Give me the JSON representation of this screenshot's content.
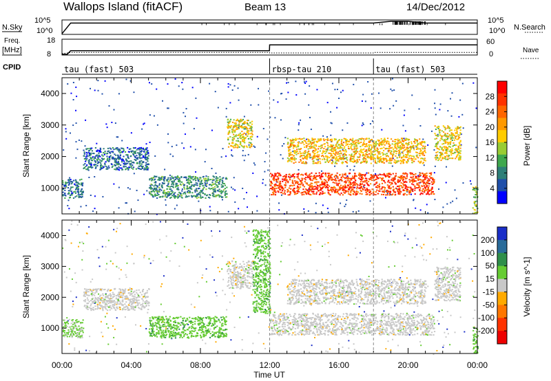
{
  "header": {
    "station": "Wallops Island (fitACF)",
    "beam": "Beam 13",
    "date": "14/Dec/2012"
  },
  "left_labels": {
    "nsky": "N.Sky",
    "nsky_ticks": [
      "10^5",
      "10^0"
    ],
    "freq": "Freq.",
    "freq_unit": "[MHz]",
    "freq_ticks": [
      "18",
      "8"
    ],
    "cpid": "CPID"
  },
  "right_labels": {
    "nsky_ticks": [
      "10^5",
      "10^0"
    ],
    "nsearch": "N.Search",
    "nave_ticks": [
      "60",
      "0"
    ],
    "nave": "Nave"
  },
  "cpid_segments": [
    {
      "label": "tau (fast) 503",
      "start_hour": 0,
      "end_hour": 12
    },
    {
      "label": "rbsp-tau 210",
      "start_hour": 12,
      "end_hour": 18
    },
    {
      "label": "tau (fast) 503",
      "start_hour": 18,
      "end_hour": 24
    }
  ],
  "x_axis": {
    "title": "Time UT",
    "tick_labels": [
      "00:00",
      "04:00",
      "08:00",
      "12:00",
      "16:00",
      "20:00",
      "00:00"
    ],
    "tick_hours": [
      0,
      4,
      8,
      12,
      16,
      20,
      24
    ]
  },
  "power_panel": {
    "ylabel": "Slant Range [km]",
    "ytick_labels": [
      "1000",
      "2000",
      "3000",
      "4000"
    ],
    "colorbar_label": "Power [dB]",
    "colorbar_ticks": [
      "4",
      "8",
      "12",
      "16",
      "20",
      "24",
      "28"
    ],
    "colors": [
      "#0000ff",
      "#1f4faa",
      "#2e7f78",
      "#3fa84e",
      "#99cc33",
      "#ffcc00",
      "#ff9900",
      "#ff6600",
      "#ff3300",
      "#ff0000"
    ]
  },
  "velocity_panel": {
    "ylabel": "Slant Range [km]",
    "ytick_labels": [
      "1000",
      "2000",
      "3000",
      "4000"
    ],
    "colorbar_label": "Velocity [m s^-1]",
    "colorbar_ticks": [
      "200",
      "100",
      "50",
      "15",
      "-15",
      "-50",
      "-100",
      "-200"
    ],
    "colors": [
      "#1a2ec8",
      "#2a6b9a",
      "#2f8f4a",
      "#66cc33",
      "#c8c8c8",
      "#ffaa00",
      "#ff7700",
      "#ff3300",
      "#ee0000"
    ]
  },
  "chart_data": [
    {
      "type": "line",
      "title": "N.Sky / N.Search",
      "x_unit": "hours UT",
      "ylim": [
        0,
        100000
      ],
      "y_scale": "log",
      "series": [
        {
          "name": "N.Sky",
          "x": [
            0,
            0.5,
            1,
            2,
            4,
            6,
            8,
            10,
            12,
            14,
            16,
            18,
            19,
            20,
            21,
            22,
            23,
            24
          ],
          "values": [
            1,
            20000,
            20000,
            20000,
            20000,
            20000,
            20000,
            20000,
            20000,
            20000,
            20000,
            20000,
            100000,
            100000,
            20000,
            20000,
            20000,
            20000
          ]
        }
      ]
    },
    {
      "type": "line",
      "title": "Freq. / Nave",
      "x_unit": "hours UT",
      "ylim": [
        8,
        18
      ],
      "series": [
        {
          "name": "Freq.",
          "x": [
            0,
            0.3,
            0.5,
            11.99,
            12.0,
            24
          ],
          "values": [
            8,
            8,
            10.5,
            10.5,
            14.5,
            14.5
          ]
        },
        {
          "name": "Nave",
          "x": [
            0,
            0.5,
            11.99,
            12,
            17.99,
            18,
            24
          ],
          "values": [
            0,
            5,
            5,
            3,
            3,
            5,
            5
          ]
        }
      ]
    },
    {
      "type": "heatmap",
      "title": "Power [dB]",
      "x_unit": "hours UT",
      "xlim": [
        0,
        24
      ],
      "ylim": [
        180,
        4500
      ],
      "ylabel": "Slant Range [km]",
      "clim": [
        0,
        30
      ],
      "regions": [
        {
          "t0": 0.0,
          "t1": 1.2,
          "r0": 700,
          "r1": 1300,
          "level": 6
        },
        {
          "t0": 1.2,
          "t1": 5.0,
          "r0": 1600,
          "r1": 2300,
          "level": 5
        },
        {
          "t0": 5.0,
          "t1": 9.5,
          "r0": 700,
          "r1": 1400,
          "level": 8
        },
        {
          "t0": 9.5,
          "t1": 11.0,
          "r0": 2300,
          "r1": 3200,
          "level": 16
        },
        {
          "t0": 12.0,
          "t1": 21.5,
          "r0": 800,
          "r1": 1500,
          "level": 26
        },
        {
          "t0": 13.0,
          "t1": 21.0,
          "r0": 1800,
          "r1": 2600,
          "level": 18
        },
        {
          "t0": 21.5,
          "t1": 23.0,
          "r0": 1900,
          "r1": 3000,
          "level": 16
        },
        {
          "t0": 23.7,
          "t1": 24.0,
          "r0": 200,
          "r1": 1100,
          "level": 12
        }
      ]
    },
    {
      "type": "heatmap",
      "title": "Velocity [m s^-1]",
      "x_unit": "hours UT",
      "xlim": [
        0,
        24
      ],
      "ylim": [
        180,
        4500
      ],
      "ylabel": "Slant Range [km]",
      "clim": [
        -200,
        200
      ],
      "regions": [
        {
          "t0": 0.0,
          "t1": 1.2,
          "r0": 700,
          "r1": 1300,
          "level": 5
        },
        {
          "t0": 1.2,
          "t1": 5.0,
          "r0": 1600,
          "r1": 2300,
          "level": 0
        },
        {
          "t0": 5.0,
          "t1": 9.5,
          "r0": 700,
          "r1": 1400,
          "level": 25
        },
        {
          "t0": 9.5,
          "t1": 11.0,
          "r0": 2300,
          "r1": 3200,
          "level": 0
        },
        {
          "t0": 11.0,
          "t1": 12.0,
          "r0": 1500,
          "r1": 4200,
          "level": 30
        },
        {
          "t0": 12.0,
          "t1": 21.5,
          "r0": 800,
          "r1": 1500,
          "level": 0
        },
        {
          "t0": 13.0,
          "t1": 21.0,
          "r0": 1800,
          "r1": 2600,
          "level": 0
        },
        {
          "t0": 21.5,
          "t1": 23.0,
          "r0": 1900,
          "r1": 3000,
          "level": 0
        },
        {
          "t0": 23.7,
          "t1": 24.0,
          "r0": 200,
          "r1": 1100,
          "level": 30
        }
      ]
    }
  ]
}
